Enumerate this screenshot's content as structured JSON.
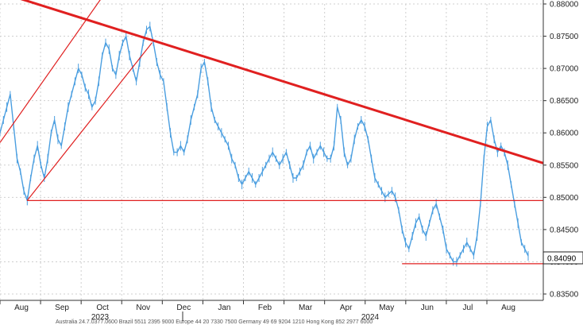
{
  "chart_data": {
    "type": "line",
    "title": "",
    "xlabel": "",
    "ylabel": "",
    "ylim": [
      0.835,
      0.88
    ],
    "yticks": [
      "0.88000",
      "0.87500",
      "0.87000",
      "0.86500",
      "0.86000",
      "0.85500",
      "0.85000",
      "0.84500",
      "0.84000",
      "0.83500"
    ],
    "month_labels": [
      "Aug",
      "Sep",
      "Oct",
      "Nov",
      "Dec",
      "Jan",
      "Feb",
      "Mar",
      "Apr",
      "May",
      "Jun",
      "Jul",
      "Aug"
    ],
    "year_labels": [
      "2023",
      "2024"
    ],
    "last_value": "0.84090",
    "grid": true,
    "series": [
      {
        "color": "#4a9ee0",
        "values": [
          0.86,
          0.862,
          0.864,
          0.866,
          0.861,
          0.856,
          0.854,
          0.851,
          0.8495,
          0.853,
          0.856,
          0.858,
          0.855,
          0.853,
          0.856,
          0.86,
          0.862,
          0.859,
          0.858,
          0.861,
          0.864,
          0.866,
          0.868,
          0.87,
          0.869,
          0.867,
          0.866,
          0.864,
          0.865,
          0.868,
          0.872,
          0.874,
          0.873,
          0.87,
          0.869,
          0.872,
          0.874,
          0.875,
          0.872,
          0.87,
          0.868,
          0.871,
          0.874,
          0.876,
          0.8765,
          0.874,
          0.871,
          0.869,
          0.868,
          0.864,
          0.86,
          0.857,
          0.857,
          0.858,
          0.857,
          0.859,
          0.862,
          0.864,
          0.866,
          0.87,
          0.871,
          0.868,
          0.864,
          0.862,
          0.861,
          0.86,
          0.859,
          0.858,
          0.856,
          0.855,
          0.853,
          0.852,
          0.853,
          0.854,
          0.853,
          0.852,
          0.853,
          0.854,
          0.855,
          0.856,
          0.857,
          0.856,
          0.855,
          0.856,
          0.857,
          0.855,
          0.853,
          0.853,
          0.854,
          0.855,
          0.857,
          0.858,
          0.856,
          0.857,
          0.858,
          0.857,
          0.856,
          0.856,
          0.858,
          0.864,
          0.862,
          0.857,
          0.855,
          0.856,
          0.859,
          0.861,
          0.862,
          0.861,
          0.859,
          0.856,
          0.853,
          0.852,
          0.851,
          0.85,
          0.8505,
          0.851,
          0.85,
          0.848,
          0.845,
          0.843,
          0.842,
          0.844,
          0.846,
          0.847,
          0.845,
          0.844,
          0.846,
          0.848,
          0.849,
          0.847,
          0.845,
          0.842,
          0.841,
          0.84,
          0.84,
          0.841,
          0.842,
          0.843,
          0.842,
          0.841,
          0.844,
          0.849,
          0.856,
          0.861,
          0.862,
          0.859,
          0.857,
          0.858,
          0.857,
          0.855,
          0.852,
          0.849,
          0.846,
          0.843,
          0.842,
          0.8409
        ]
      }
    ],
    "trendlines": [
      {
        "name": "",
        "color": "#e02020",
        "x": [
          0.0,
          1.0
        ],
        "y": [
          0.8818,
          0.8553
        ]
      },
      {
        "name": "",
        "color": "#e02020",
        "x": [
          0.0,
          0.2
        ],
        "y": [
          0.8585,
          0.8825
        ]
      },
      {
        "name": "",
        "color": "#e02020",
        "x": [
          0.05,
          0.28
        ],
        "y": [
          0.8495,
          0.874
        ]
      },
      {
        "name": "",
        "color": "#e02020",
        "x": [
          0.05,
          1.0
        ],
        "y": [
          0.8495,
          0.8495
        ]
      },
      {
        "name": "",
        "color": "#e02020",
        "x": [
          0.74,
          1.0
        ],
        "y": [
          0.8397,
          0.8397
        ]
      }
    ]
  },
  "footer": "Australia 24.7.0377.0600 Brazil 5511 2395 9000 Europe 44 20 7330 7500 Germany 49 69 9204 1210 Hong Kong 852 2977 6000"
}
